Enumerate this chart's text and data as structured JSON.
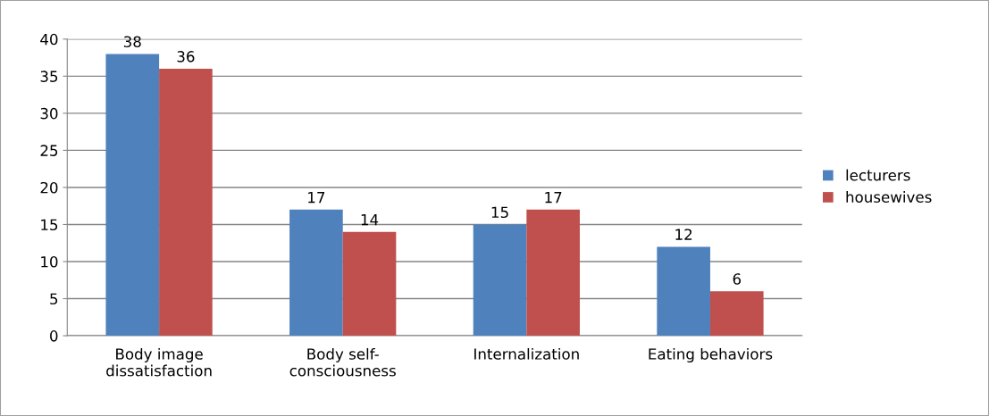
{
  "chart_data": {
    "type": "bar",
    "categories": [
      "Body image\ndissatisfaction",
      "Body self-\nconsciousness",
      "Internalization",
      "Eating behaviors"
    ],
    "series": [
      {
        "name": "lecturers",
        "color": "#4f81bd",
        "values": [
          38,
          17,
          15,
          12
        ]
      },
      {
        "name": "housewives",
        "color": "#c0504d",
        "values": [
          36,
          14,
          17,
          6
        ]
      }
    ],
    "ylim": [
      0,
      40
    ],
    "yticks": [
      0,
      5,
      10,
      15,
      20,
      25,
      30,
      35,
      40
    ],
    "grid": "y",
    "legend": "right",
    "data_labels": true
  }
}
